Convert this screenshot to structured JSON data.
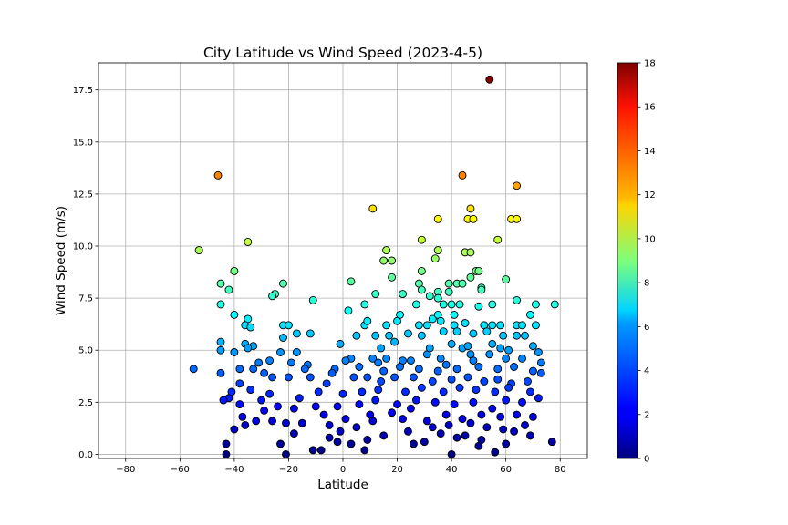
{
  "chart_data": {
    "type": "scatter",
    "title": "City Latitude vs Wind Speed (2023-4-5)",
    "xlabel": "Latitude",
    "ylabel": "Wind Speed (m/s)",
    "xlim": [
      -90,
      90
    ],
    "ylim": [
      -0.2,
      18.8
    ],
    "xticks": [
      -80,
      -60,
      -40,
      -20,
      0,
      20,
      40,
      60,
      80
    ],
    "yticks": [
      0.0,
      2.5,
      5.0,
      7.5,
      10.0,
      12.5,
      15.0,
      17.5
    ],
    "xtick_labels": [
      "−80",
      "−60",
      "−40",
      "−20",
      "0",
      "20",
      "40",
      "60",
      "80"
    ],
    "ytick_labels": [
      "0.0",
      "2.5",
      "5.0",
      "7.5",
      "10.0",
      "12.5",
      "15.0",
      "17.5"
    ],
    "grid": true,
    "colormap": "jet",
    "colorbar": {
      "range": [
        0,
        18
      ],
      "ticks": [
        0,
        2,
        4,
        6,
        8,
        10,
        12,
        14,
        16,
        18
      ],
      "tick_labels": [
        "0",
        "2",
        "4",
        "6",
        "8",
        "10",
        "12",
        "14",
        "16",
        "18"
      ]
    },
    "points": [
      [
        54,
        18.0
      ],
      [
        -46,
        13.4
      ],
      [
        44,
        13.4
      ],
      [
        64,
        12.9
      ],
      [
        11,
        11.8
      ],
      [
        47,
        11.8
      ],
      [
        35,
        11.3
      ],
      [
        46,
        11.3
      ],
      [
        48,
        11.3
      ],
      [
        62,
        11.3
      ],
      [
        64,
        11.3
      ],
      [
        -35,
        10.2
      ],
      [
        29,
        10.3
      ],
      [
        57,
        10.3
      ],
      [
        -53,
        9.8
      ],
      [
        16,
        9.8
      ],
      [
        35,
        9.8
      ],
      [
        45,
        9.7
      ],
      [
        47,
        9.7
      ],
      [
        15,
        9.3
      ],
      [
        18,
        9.3
      ],
      [
        34,
        9.4
      ],
      [
        -40,
        8.8
      ],
      [
        29,
        8.8
      ],
      [
        49,
        8.8
      ],
      [
        50,
        8.8
      ],
      [
        18,
        8.5
      ],
      [
        47,
        8.5
      ],
      [
        60,
        8.4
      ],
      [
        3,
        8.3
      ],
      [
        -45,
        8.2
      ],
      [
        -22,
        8.2
      ],
      [
        28,
        8.2
      ],
      [
        39,
        8.2
      ],
      [
        42,
        8.2
      ],
      [
        44,
        8.2
      ],
      [
        29,
        7.9
      ],
      [
        -42,
        7.9
      ],
      [
        51,
        8.0
      ],
      [
        51,
        7.9
      ],
      [
        -25,
        7.7
      ],
      [
        -26,
        7.6
      ],
      [
        12,
        7.7
      ],
      [
        22,
        7.7
      ],
      [
        32,
        7.6
      ],
      [
        35,
        7.8
      ],
      [
        39,
        7.8
      ],
      [
        -45,
        7.2
      ],
      [
        -11,
        7.4
      ],
      [
        8,
        7.2
      ],
      [
        27,
        7.2
      ],
      [
        35,
        7.5
      ],
      [
        37,
        7.2
      ],
      [
        40,
        7.2
      ],
      [
        43,
        7.2
      ],
      [
        50,
        7.1
      ],
      [
        55,
        7.2
      ],
      [
        64,
        7.4
      ],
      [
        71,
        7.2
      ],
      [
        78,
        7.2
      ],
      [
        2,
        6.9
      ],
      [
        -40,
        6.7
      ],
      [
        -35,
        6.5
      ],
      [
        21,
        6.7
      ],
      [
        33,
        6.5
      ],
      [
        35,
        6.7
      ],
      [
        41,
        6.7
      ],
      [
        69,
        6.7
      ],
      [
        -36,
        6.2
      ],
      [
        -34,
        6.1
      ],
      [
        -22,
        6.2
      ],
      [
        -20,
        6.2
      ],
      [
        8,
        6.2
      ],
      [
        9,
        6.4
      ],
      [
        16,
        6.2
      ],
      [
        20,
        6.4
      ],
      [
        28,
        6.2
      ],
      [
        31,
        6.2
      ],
      [
        36,
        6.4
      ],
      [
        41,
        6.2
      ],
      [
        45,
        6.3
      ],
      [
        52,
        6.2
      ],
      [
        55,
        6.2
      ],
      [
        58,
        6.2
      ],
      [
        64,
        6.2
      ],
      [
        66,
        6.2
      ],
      [
        71,
        6.2
      ],
      [
        -45,
        5.4
      ],
      [
        -36,
        5.3
      ],
      [
        -33,
        5.2
      ],
      [
        -22,
        5.6
      ],
      [
        -17,
        5.8
      ],
      [
        -12,
        5.8
      ],
      [
        -1,
        5.3
      ],
      [
        5,
        5.7
      ],
      [
        12,
        5.7
      ],
      [
        17,
        5.7
      ],
      [
        24,
        5.8
      ],
      [
        29,
        5.7
      ],
      [
        37,
        5.9
      ],
      [
        42,
        5.9
      ],
      [
        48,
        5.8
      ],
      [
        53,
        5.9
      ],
      [
        59,
        5.7
      ],
      [
        64,
        5.7
      ],
      [
        67,
        5.7
      ],
      [
        -55,
        4.1
      ],
      [
        -45,
        5.0
      ],
      [
        -40,
        4.9
      ],
      [
        -35,
        5.1
      ],
      [
        -31,
        4.4
      ],
      [
        -23,
        4.9
      ],
      [
        -17,
        4.9
      ],
      [
        -13,
        4.3
      ],
      [
        -3,
        4.1
      ],
      [
        3,
        4.6
      ],
      [
        11,
        4.6
      ],
      [
        16,
        4.6
      ],
      [
        22,
        4.5
      ],
      [
        31,
        4.8
      ],
      [
        38,
        4.3
      ],
      [
        44,
        5.1
      ],
      [
        47,
        4.8
      ],
      [
        54,
        4.8
      ],
      [
        58,
        5.1
      ],
      [
        66,
        4.6
      ],
      [
        72,
        4.9
      ],
      [
        -45,
        3.9
      ],
      [
        -42,
        2.7
      ],
      [
        -38,
        3.4
      ],
      [
        -33,
        4.1
      ],
      [
        -26,
        3.7
      ],
      [
        -20,
        3.7
      ],
      [
        -12,
        3.7
      ],
      [
        -6,
        3.4
      ],
      [
        4,
        3.7
      ],
      [
        9,
        3.7
      ],
      [
        14,
        3.5
      ],
      [
        19,
        3.7
      ],
      [
        26,
        3.7
      ],
      [
        33,
        3.5
      ],
      [
        40,
        3.6
      ],
      [
        46,
        3.7
      ],
      [
        52,
        3.5
      ],
      [
        57,
        3.6
      ],
      [
        62,
        3.4
      ],
      [
        68,
        3.5
      ],
      [
        73,
        3.9
      ],
      [
        -44,
        2.6
      ],
      [
        -38,
        2.4
      ],
      [
        -30,
        2.6
      ],
      [
        -24,
        2.3
      ],
      [
        -18,
        2.2
      ],
      [
        -10,
        2.3
      ],
      [
        -2,
        2.3
      ],
      [
        6,
        2.4
      ],
      [
        12,
        2.6
      ],
      [
        20,
        2.4
      ],
      [
        27,
        2.6
      ],
      [
        34,
        2.5
      ],
      [
        41,
        2.4
      ],
      [
        48,
        2.5
      ],
      [
        55,
        2.2
      ],
      [
        60,
        2.6
      ],
      [
        66,
        2.5
      ],
      [
        72,
        2.7
      ],
      [
        -43,
        0.5
      ],
      [
        -43,
        0.0
      ],
      [
        -40,
        1.2
      ],
      [
        -36,
        1.4
      ],
      [
        -32,
        1.6
      ],
      [
        -26,
        1.6
      ],
      [
        -21,
        0.0
      ],
      [
        -18,
        1.0
      ],
      [
        -11,
        0.2
      ],
      [
        -8,
        0.2
      ],
      [
        -5,
        0.8
      ],
      [
        -1,
        1.1
      ],
      [
        3,
        0.5
      ],
      [
        8,
        0.2
      ],
      [
        15,
        0.9
      ],
      [
        22,
        1.7
      ],
      [
        30,
        0.6
      ],
      [
        36,
        1.0
      ],
      [
        40,
        0.0
      ],
      [
        45,
        0.9
      ],
      [
        50,
        0.4
      ],
      [
        56,
        0.1
      ],
      [
        63,
        1.1
      ],
      [
        69,
        0.9
      ],
      [
        77,
        0.6
      ],
      [
        -37,
        1.8
      ],
      [
        -29,
        2.1
      ],
      [
        -15,
        1.5
      ],
      [
        -7,
        1.9
      ],
      [
        1,
        1.7
      ],
      [
        10,
        1.9
      ],
      [
        18,
        2.0
      ],
      [
        25,
        2.2
      ],
      [
        31,
        1.6
      ],
      [
        38,
        1.9
      ],
      [
        44,
        1.7
      ],
      [
        51,
        1.9
      ],
      [
        58,
        1.8
      ],
      [
        64,
        1.9
      ],
      [
        70,
        1.8
      ],
      [
        -41,
        3.0
      ],
      [
        -34,
        3.1
      ],
      [
        -27,
        2.9
      ],
      [
        -16,
        2.7
      ],
      [
        -9,
        3.0
      ],
      [
        0,
        2.9
      ],
      [
        7,
        3.0
      ],
      [
        13,
        3.1
      ],
      [
        23,
        3.0
      ],
      [
        29,
        3.2
      ],
      [
        37,
        3.0
      ],
      [
        43,
        3.2
      ],
      [
        49,
        3.1
      ],
      [
        56,
        3.0
      ],
      [
        61,
        3.2
      ],
      [
        69,
        3.0
      ],
      [
        -38,
        4.1
      ],
      [
        -29,
        3.9
      ],
      [
        -14,
        4.1
      ],
      [
        -4,
        3.9
      ],
      [
        6,
        4.2
      ],
      [
        15,
        4.0
      ],
      [
        21,
        4.2
      ],
      [
        28,
        4.1
      ],
      [
        35,
        4.0
      ],
      [
        42,
        4.1
      ],
      [
        50,
        4.2
      ],
      [
        57,
        4.1
      ],
      [
        63,
        4.2
      ],
      [
        70,
        4.0
      ],
      [
        -21,
        1.5
      ],
      [
        -5,
        1.4
      ],
      [
        5,
        1.3
      ],
      [
        11,
        1.6
      ],
      [
        24,
        1.1
      ],
      [
        33,
        1.3
      ],
      [
        39,
        1.4
      ],
      [
        47,
        1.5
      ],
      [
        53,
        1.3
      ],
      [
        59,
        1.2
      ],
      [
        67,
        1.4
      ],
      [
        -23,
        0.5
      ],
      [
        -2,
        0.6
      ],
      [
        9,
        0.7
      ],
      [
        26,
        0.5
      ],
      [
        42,
        0.8
      ],
      [
        51,
        0.7
      ],
      [
        60,
        0.5
      ],
      [
        14,
        5.1
      ],
      [
        19,
        5.4
      ],
      [
        32,
        5.1
      ],
      [
        40,
        5.3
      ],
      [
        46,
        5.2
      ],
      [
        55,
        5.3
      ],
      [
        61,
        5.0
      ],
      [
        70,
        5.2
      ],
      [
        -27,
        4.5
      ],
      [
        -19,
        4.4
      ],
      [
        1,
        4.5
      ],
      [
        13,
        4.4
      ],
      [
        25,
        4.5
      ],
      [
        36,
        4.6
      ],
      [
        48,
        4.5
      ],
      [
        60,
        4.6
      ],
      [
        73,
        4.4
      ]
    ]
  }
}
